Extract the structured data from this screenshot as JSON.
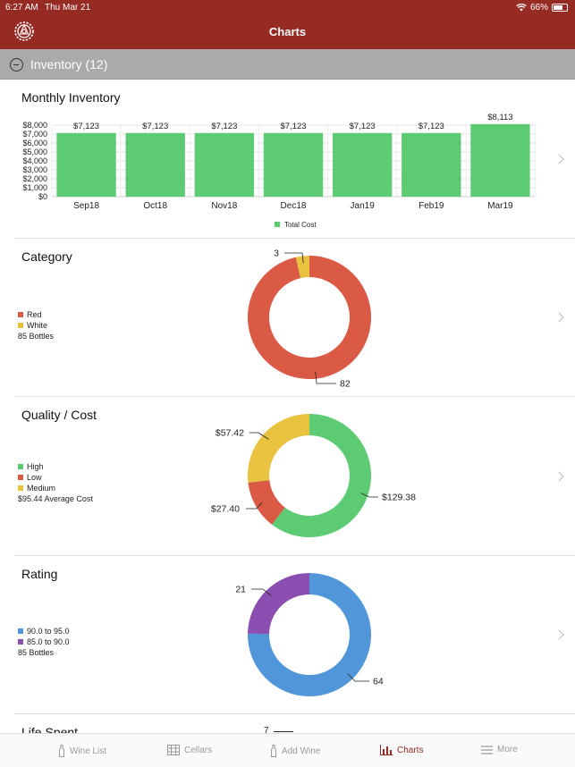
{
  "status": {
    "time": "6:27 AM",
    "date": "Thu Mar 21",
    "battery": "66%"
  },
  "header": {
    "title": "Charts"
  },
  "section": {
    "label": "Inventory (12)"
  },
  "colors": {
    "brand": "#962b24",
    "green": "#5ccb74",
    "red": "#db5a46",
    "yellow": "#e9c23f",
    "blue": "#5096d8",
    "purple": "#8a4eb0"
  },
  "monthly": {
    "title": "Monthly Inventory",
    "chart_data": {
      "type": "bar",
      "categories": [
        "Sep18",
        "Oct18",
        "Nov18",
        "Dec18",
        "Jan19",
        "Feb19",
        "Mar19"
      ],
      "series": [
        {
          "name": "Total Cost",
          "values": [
            7123,
            7123,
            7123,
            7123,
            7123,
            7123,
            8113
          ]
        }
      ],
      "value_labels": [
        "$7,123",
        "$7,123",
        "$7,123",
        "$7,123",
        "$7,123",
        "$7,123",
        "$8,113"
      ],
      "yticks": [
        "$0",
        "$1,000",
        "$2,000",
        "$3,000",
        "$4,000",
        "$5,000",
        "$6,000",
        "$7,000",
        "$8,000"
      ],
      "ylim": [
        0,
        8000
      ],
      "legend": "Total Cost",
      "grid": true,
      "legend_position": "bottom"
    }
  },
  "category": {
    "title": "Category",
    "legend": [
      {
        "label": "Red",
        "color": "#db5a46"
      },
      {
        "label": "White",
        "color": "#e9c23f"
      }
    ],
    "summary": "85 Bottles",
    "chart_data": {
      "type": "pie",
      "labels": [
        "Red",
        "White"
      ],
      "values": [
        82,
        3
      ],
      "value_labels": [
        "82",
        "3"
      ]
    }
  },
  "quality": {
    "title": "Quality / Cost",
    "legend": [
      {
        "label": "High",
        "color": "#5ccb74"
      },
      {
        "label": "Low",
        "color": "#db5a46"
      },
      {
        "label": "Medium",
        "color": "#e9c23f"
      }
    ],
    "summary": "$95.44 Average Cost",
    "chart_data": {
      "type": "pie",
      "labels": [
        "High",
        "Low",
        "Medium"
      ],
      "values": [
        129.38,
        27.4,
        57.42
      ],
      "value_labels": [
        "$129.38",
        "$27.40",
        "$57.42"
      ]
    }
  },
  "rating": {
    "title": "Rating",
    "legend": [
      {
        "label": "90.0 to 95.0",
        "color": "#5096d8"
      },
      {
        "label": "85.0 to 90.0",
        "color": "#8a4eb0"
      }
    ],
    "summary": "85 Bottles",
    "chart_data": {
      "type": "pie",
      "labels": [
        "90.0 to 95.0",
        "85.0 to 90.0"
      ],
      "values": [
        64,
        21
      ],
      "value_labels": [
        "64",
        "21"
      ]
    }
  },
  "partial": {
    "title": "Life Spent",
    "value_label": "7"
  },
  "tabs": [
    {
      "label": "Wine List",
      "icon": "wine-bottle-icon"
    },
    {
      "label": "Cellars",
      "icon": "cellar-grid-icon"
    },
    {
      "label": "Add Wine",
      "icon": "add-bottle-icon"
    },
    {
      "label": "Charts",
      "icon": "chart-icon"
    },
    {
      "label": "More",
      "icon": "menu-icon"
    }
  ]
}
